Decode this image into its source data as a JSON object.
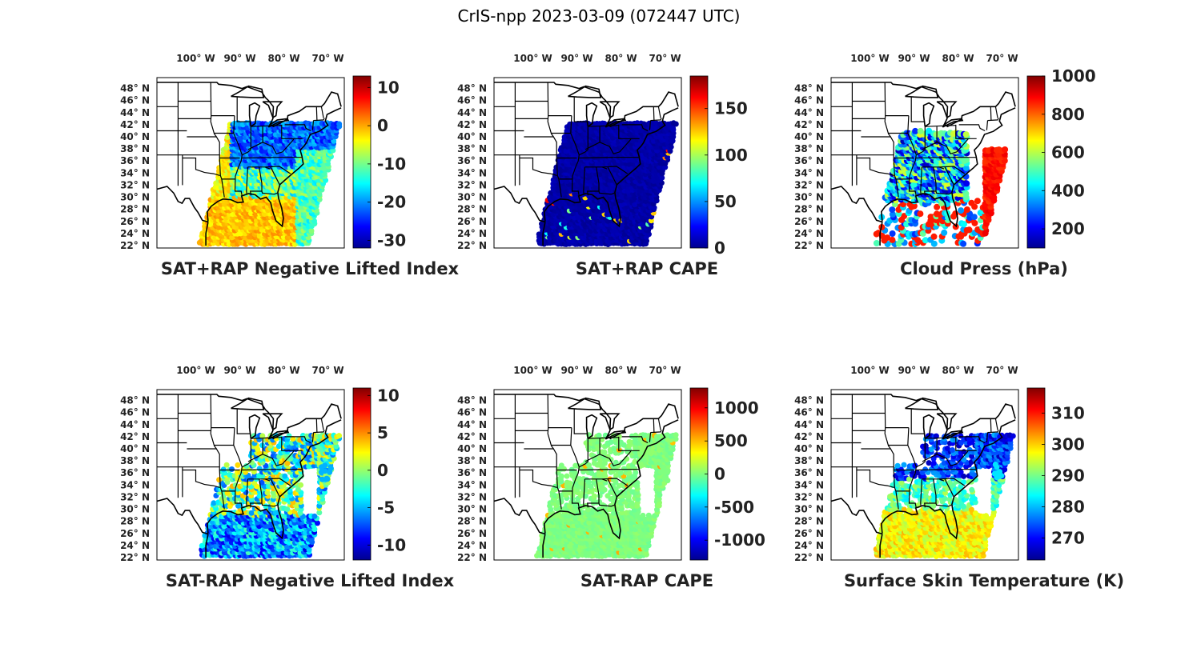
{
  "figure_title": "CrIS-npp 2023-03-09 (072447 UTC)",
  "chart_data": [
    {
      "type": "heatmap",
      "title": "SAT+RAP Negative Lifted Index",
      "lon_labels": [
        "100° W",
        "90° W",
        "80° W",
        "70° W"
      ],
      "lat_labels": [
        "48° N",
        "46° N",
        "44° N",
        "42° N",
        "40° N",
        "38° N",
        "36° N",
        "34° N",
        "32° N",
        "30° N",
        "28° N",
        "26° N",
        "24° N",
        "22° N"
      ],
      "colorbar": {
        "ticks": [
          "10",
          "0",
          "-10",
          "-20",
          "-30"
        ],
        "clim": [
          -32,
          13
        ]
      },
      "field_pattern": "moist_south"
    },
    {
      "type": "heatmap",
      "title": "SAT+RAP CAPE",
      "lon_labels": [
        "100° W",
        "90° W",
        "80° W",
        "70° W"
      ],
      "lat_labels": [
        "48° N",
        "46° N",
        "44° N",
        "42° N",
        "40° N",
        "38° N",
        "36° N",
        "34° N",
        "32° N",
        "30° N",
        "28° N",
        "26° N",
        "24° N",
        "22° N"
      ],
      "colorbar": {
        "ticks": [
          "150",
          "100",
          "50",
          "0"
        ],
        "clim": [
          0,
          185
        ]
      },
      "field_pattern": "mostly_zero"
    },
    {
      "type": "heatmap",
      "title": "Cloud Press (hPa)",
      "lon_labels": [
        "100° W",
        "90° W",
        "80° W",
        "70° W"
      ],
      "lat_labels": [
        "48° N",
        "46° N",
        "44° N",
        "42° N",
        "40° N",
        "38° N",
        "36° N",
        "34° N",
        "32° N",
        "30° N",
        "28° N",
        "26° N",
        "24° N",
        "22° N"
      ],
      "colorbar": {
        "ticks": [
          "1000",
          "800",
          "600",
          "400",
          "200"
        ],
        "clim": [
          100,
          1000
        ]
      },
      "field_pattern": "clouds"
    },
    {
      "type": "heatmap",
      "title": "SAT-RAP Negative Lifted Index",
      "lon_labels": [
        "100° W",
        "90° W",
        "80° W",
        "70° W"
      ],
      "lat_labels": [
        "48° N",
        "46° N",
        "44° N",
        "42° N",
        "40° N",
        "38° N",
        "36° N",
        "34° N",
        "32° N",
        "30° N",
        "28° N",
        "26° N",
        "24° N",
        "22° N"
      ],
      "colorbar": {
        "ticks": [
          "10",
          "5",
          "0",
          "-5",
          "-10"
        ],
        "clim": [
          -12,
          11
        ]
      },
      "field_pattern": "diff_li"
    },
    {
      "type": "heatmap",
      "title": "SAT-RAP CAPE",
      "lon_labels": [
        "100° W",
        "90° W",
        "80° W",
        "70° W"
      ],
      "lat_labels": [
        "48° N",
        "46° N",
        "44° N",
        "42° N",
        "40° N",
        "38° N",
        "36° N",
        "34° N",
        "32° N",
        "30° N",
        "28° N",
        "26° N",
        "24° N",
        "22° N"
      ],
      "colorbar": {
        "ticks": [
          "1000",
          "500",
          "0",
          "-500",
          "-1000"
        ],
        "clim": [
          -1300,
          1300
        ]
      },
      "field_pattern": "diff_cape"
    },
    {
      "type": "heatmap",
      "title": "Surface Skin Temperature (K)",
      "lon_labels": [
        "100° W",
        "90° W",
        "80° W",
        "70° W"
      ],
      "lat_labels": [
        "48° N",
        "46° N",
        "44° N",
        "42° N",
        "40° N",
        "38° N",
        "36° N",
        "34° N",
        "32° N",
        "30° N",
        "28° N",
        "26° N",
        "24° N",
        "22° N"
      ],
      "colorbar": {
        "ticks": [
          "310",
          "300",
          "290",
          "280",
          "270"
        ],
        "clim": [
          263,
          318
        ]
      },
      "field_pattern": "skin_temp"
    }
  ]
}
